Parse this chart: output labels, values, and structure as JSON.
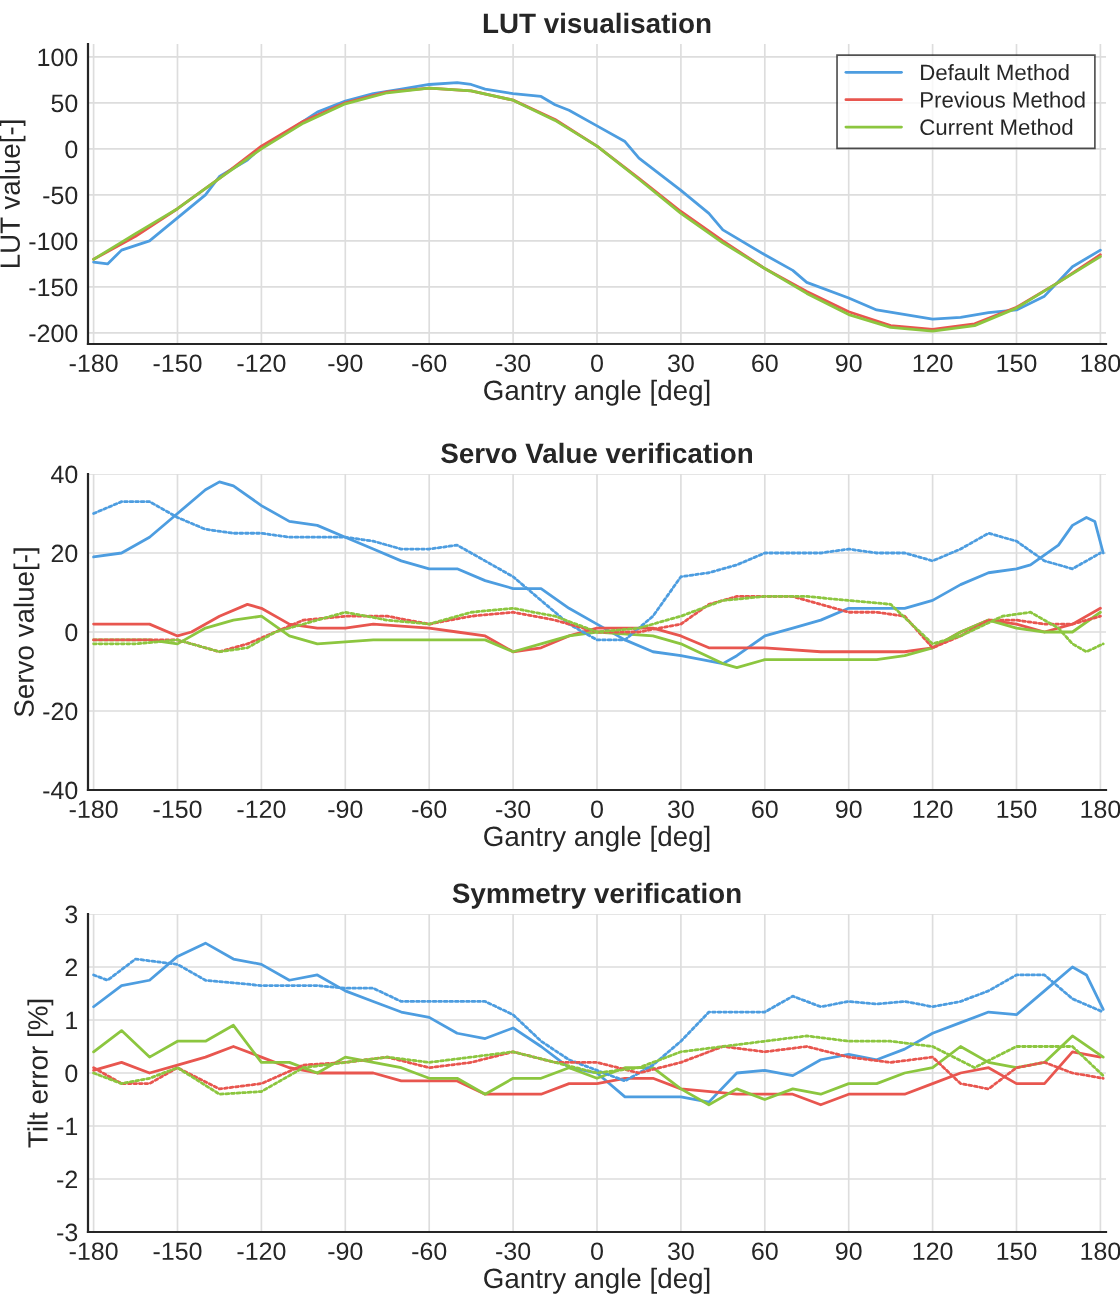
{
  "chart_data": [
    {
      "type": "line",
      "title": "LUT visualisation",
      "xlabel": "Gantry angle [deg]",
      "ylabel": "LUT value[-]",
      "xlim": [
        -182,
        182
      ],
      "xticks": [
        -180,
        -150,
        -120,
        -90,
        -60,
        -30,
        0,
        30,
        60,
        90,
        120,
        150,
        180
      ],
      "ylim": [
        -212,
        114
      ],
      "yticks": [
        -200,
        -150,
        -100,
        -50,
        0,
        50,
        100
      ],
      "grid": true,
      "legend": "top right",
      "series": [
        {
          "name": "Default Method",
          "color": "#4d9de0",
          "line_style": "solid",
          "x": [
            -180,
            -175,
            -170,
            -160,
            -150,
            -140,
            -135,
            -125,
            -120,
            -110,
            -100,
            -90,
            -80,
            -70,
            -60,
            -50,
            -45,
            -40,
            -30,
            -20,
            -15,
            -10,
            0,
            10,
            15,
            30,
            40,
            45,
            60,
            70,
            75,
            90,
            100,
            120,
            130,
            140,
            150,
            160,
            170,
            180
          ],
          "values": [
            -123,
            -125,
            -110,
            -100,
            -75,
            -50,
            -30,
            -12,
            2,
            20,
            40,
            52,
            60,
            65,
            70,
            72,
            70,
            65,
            60,
            57,
            48,
            42,
            25,
            8,
            -10,
            -45,
            -70,
            -88,
            -115,
            -132,
            -145,
            -162,
            -175,
            -185,
            -183,
            -178,
            -175,
            -160,
            -128,
            -110
          ]
        },
        {
          "name": "Previous Method",
          "color": "#e8564f",
          "line_style": "solid",
          "x": [
            -180,
            -165,
            -150,
            -135,
            -120,
            -105,
            -90,
            -75,
            -60,
            -45,
            -30,
            -15,
            0,
            15,
            30,
            45,
            60,
            75,
            90,
            105,
            120,
            135,
            150,
            165,
            180
          ],
          "values": [
            -120,
            -95,
            -65,
            -32,
            3,
            30,
            50,
            62,
            66,
            63,
            53,
            32,
            3,
            -32,
            -68,
            -100,
            -130,
            -155,
            -177,
            -192,
            -196,
            -190,
            -172,
            -145,
            -115
          ]
        },
        {
          "name": "Current Method",
          "color": "#8cc63f",
          "line_style": "solid",
          "x": [
            -180,
            -165,
            -150,
            -135,
            -120,
            -105,
            -90,
            -75,
            -60,
            -45,
            -30,
            -15,
            0,
            15,
            30,
            45,
            60,
            75,
            90,
            105,
            120,
            135,
            150,
            165,
            180
          ],
          "values": [
            -120,
            -92,
            -65,
            -32,
            0,
            28,
            49,
            61,
            66,
            63,
            53,
            31,
            3,
            -33,
            -70,
            -102,
            -130,
            -157,
            -180,
            -194,
            -198,
            -192,
            -173,
            -145,
            -117
          ]
        }
      ]
    },
    {
      "type": "line",
      "title": "Servo Value verification",
      "xlabel": "Gantry angle [deg]",
      "ylabel": "Servo value[-]",
      "xlim": [
        -182,
        182
      ],
      "xticks": [
        -180,
        -150,
        -120,
        -90,
        -60,
        -30,
        0,
        30,
        60,
        90,
        120,
        150,
        180
      ],
      "ylim": [
        -40,
        40
      ],
      "yticks": [
        -40,
        -20,
        0,
        20,
        40
      ],
      "grid": true,
      "series": [
        {
          "color": "#4d9de0",
          "line_style": "solid",
          "x": [
            -180,
            -170,
            -160,
            -150,
            -140,
            -135,
            -130,
            -120,
            -110,
            -100,
            -90,
            -80,
            -70,
            -60,
            -50,
            -40,
            -30,
            -20,
            -10,
            0,
            10,
            20,
            30,
            45,
            50,
            60,
            70,
            80,
            90,
            100,
            110,
            120,
            130,
            140,
            150,
            155,
            165,
            170,
            175,
            178,
            181
          ],
          "values": [
            19,
            20,
            24,
            30,
            36,
            38,
            37,
            32,
            28,
            27,
            24,
            21,
            18,
            16,
            16,
            13,
            11,
            11,
            6,
            2,
            -2,
            -5,
            -6,
            -8,
            -6,
            -1,
            1,
            3,
            6,
            6,
            6,
            8,
            12,
            15,
            16,
            17,
            22,
            27,
            29,
            28,
            20
          ]
        },
        {
          "color": "#4d9de0",
          "line_style": "dotted",
          "x": [
            -180,
            -170,
            -160,
            -150,
            -140,
            -130,
            -120,
            -110,
            -100,
            -90,
            -80,
            -70,
            -60,
            -50,
            -40,
            -30,
            -20,
            -10,
            0,
            10,
            20,
            30,
            40,
            50,
            60,
            70,
            80,
            90,
            100,
            110,
            120,
            130,
            140,
            150,
            160,
            170,
            180
          ],
          "values": [
            30,
            33,
            33,
            29,
            26,
            25,
            25,
            24,
            24,
            24,
            23,
            21,
            21,
            22,
            18,
            14,
            8,
            2,
            -2,
            -2,
            4,
            14,
            15,
            17,
            20,
            20,
            20,
            21,
            20,
            20,
            18,
            21,
            25,
            23,
            18,
            16,
            20
          ]
        },
        {
          "color": "#e8564f",
          "line_style": "solid",
          "x": [
            -180,
            -160,
            -150,
            -145,
            -135,
            -125,
            -120,
            -110,
            -100,
            -90,
            -80,
            -60,
            -50,
            -40,
            -30,
            -20,
            -10,
            0,
            20,
            30,
            40,
            60,
            80,
            110,
            120,
            130,
            140,
            150,
            160,
            170,
            180
          ],
          "values": [
            2,
            2,
            -1,
            0,
            4,
            7,
            6,
            2,
            1,
            1,
            2,
            1,
            0,
            -1,
            -5,
            -4,
            -1,
            1,
            1,
            -1,
            -4,
            -4,
            -5,
            -5,
            -4,
            0,
            3,
            2,
            0,
            2,
            6
          ]
        },
        {
          "color": "#e8564f",
          "line_style": "dotted",
          "x": [
            -180,
            -165,
            -150,
            -135,
            -125,
            -115,
            -105,
            -90,
            -75,
            -60,
            -45,
            -30,
            -15,
            0,
            15,
            30,
            40,
            50,
            60,
            70,
            80,
            90,
            100,
            110,
            120,
            130,
            140,
            150,
            160,
            170,
            180
          ],
          "values": [
            -2,
            -2,
            -2,
            -5,
            -3,
            0,
            3,
            4,
            4,
            2,
            4,
            5,
            3,
            0,
            0,
            2,
            7,
            9,
            9,
            9,
            7,
            5,
            5,
            4,
            -4,
            -1,
            3,
            3,
            2,
            2,
            4
          ]
        },
        {
          "color": "#8cc63f",
          "line_style": "solid",
          "x": [
            -180,
            -160,
            -150,
            -140,
            -130,
            -120,
            -110,
            -100,
            -80,
            -40,
            -30,
            -20,
            -10,
            0,
            20,
            30,
            45,
            50,
            60,
            80,
            100,
            110,
            120,
            130,
            140,
            150,
            160,
            170,
            180
          ],
          "values": [
            -2,
            -2,
            -3,
            1,
            3,
            4,
            -1,
            -3,
            -2,
            -2,
            -5,
            -3,
            -1,
            0,
            -1,
            -3,
            -8,
            -9,
            -7,
            -7,
            -7,
            -6,
            -4,
            0,
            3,
            1,
            0,
            0,
            5
          ]
        },
        {
          "color": "#8cc63f",
          "line_style": "dotted",
          "x": [
            -180,
            -165,
            -150,
            -135,
            -125,
            -115,
            -100,
            -90,
            -75,
            -60,
            -45,
            -30,
            -15,
            0,
            15,
            30,
            45,
            60,
            75,
            90,
            105,
            120,
            130,
            145,
            155,
            165,
            170,
            175,
            181
          ],
          "values": [
            -3,
            -3,
            -2,
            -5,
            -4,
            0,
            3,
            5,
            3,
            2,
            5,
            6,
            4,
            0,
            1,
            4,
            8,
            9,
            9,
            8,
            7,
            -3,
            -1,
            4,
            5,
            1,
            -3,
            -5,
            -3
          ]
        }
      ]
    },
    {
      "type": "line",
      "title": "Symmetry verification",
      "xlabel": "Gantry angle [deg]",
      "ylabel": "Tilt error [%]",
      "xlim": [
        -182,
        182
      ],
      "xticks": [
        -180,
        -150,
        -120,
        -90,
        -60,
        -30,
        0,
        30,
        60,
        90,
        120,
        150,
        180
      ],
      "ylim": [
        -3,
        3
      ],
      "yticks": [
        -3,
        -2,
        -1,
        0,
        1,
        2,
        3
      ],
      "grid": true,
      "series": [
        {
          "color": "#4d9de0",
          "line_style": "solid",
          "x": [
            -180,
            -170,
            -160,
            -150,
            -140,
            -130,
            -120,
            -110,
            -100,
            -90,
            -80,
            -70,
            -60,
            -50,
            -40,
            -30,
            -20,
            -10,
            0,
            10,
            20,
            30,
            40,
            50,
            60,
            70,
            80,
            90,
            100,
            110,
            120,
            130,
            140,
            150,
            160,
            170,
            175,
            181
          ],
          "values": [
            1.25,
            1.65,
            1.75,
            2.2,
            2.45,
            2.15,
            2.05,
            1.75,
            1.85,
            1.55,
            1.35,
            1.15,
            1.05,
            0.75,
            0.65,
            0.85,
            0.5,
            0.1,
            0,
            -0.45,
            -0.45,
            -0.45,
            -0.55,
            0,
            0.05,
            -0.05,
            0.25,
            0.35,
            0.25,
            0.45,
            0.75,
            0.95,
            1.15,
            1.1,
            1.55,
            2.0,
            1.85,
            1.2
          ]
        },
        {
          "color": "#4d9de0",
          "line_style": "dotted",
          "x": [
            -180,
            -175,
            -165,
            -150,
            -140,
            -120,
            -100,
            -90,
            -80,
            -70,
            -60,
            -40,
            -30,
            -20,
            -10,
            0,
            10,
            20,
            30,
            40,
            60,
            70,
            80,
            90,
            100,
            110,
            120,
            130,
            140,
            150,
            160,
            170,
            181
          ],
          "values": [
            1.85,
            1.75,
            2.15,
            2.05,
            1.75,
            1.65,
            1.65,
            1.6,
            1.6,
            1.35,
            1.35,
            1.35,
            1.1,
            0.6,
            0.25,
            0.05,
            -0.15,
            0.15,
            0.6,
            1.15,
            1.15,
            1.45,
            1.25,
            1.35,
            1.3,
            1.35,
            1.25,
            1.35,
            1.55,
            1.85,
            1.85,
            1.4,
            1.15
          ]
        },
        {
          "color": "#e8564f",
          "line_style": "solid",
          "x": [
            -180,
            -170,
            -160,
            -150,
            -140,
            -130,
            -120,
            -110,
            -100,
            -80,
            -70,
            -50,
            -40,
            -20,
            -10,
            0,
            10,
            20,
            30,
            50,
            70,
            80,
            90,
            110,
            120,
            130,
            140,
            150,
            160,
            170,
            180
          ],
          "values": [
            0.05,
            0.2,
            0,
            0.15,
            0.3,
            0.5,
            0.3,
            0.1,
            0,
            0,
            -0.15,
            -0.15,
            -0.4,
            -0.4,
            -0.2,
            -0.2,
            -0.1,
            -0.1,
            -0.3,
            -0.4,
            -0.4,
            -0.6,
            -0.4,
            -0.4,
            -0.2,
            0,
            0.1,
            -0.2,
            -0.2,
            0.4,
            0.3
          ]
        },
        {
          "color": "#e8564f",
          "line_style": "dotted",
          "x": [
            -180,
            -170,
            -160,
            -150,
            -135,
            -120,
            -105,
            -90,
            -75,
            -60,
            -45,
            -30,
            -15,
            0,
            15,
            30,
            45,
            60,
            75,
            90,
            105,
            120,
            130,
            140,
            150,
            160,
            170,
            181
          ],
          "values": [
            0.1,
            -0.2,
            -0.2,
            0.1,
            -0.3,
            -0.2,
            0.15,
            0.2,
            0.3,
            0.1,
            0.2,
            0.4,
            0.2,
            0.2,
            0,
            0.2,
            0.5,
            0.4,
            0.5,
            0.3,
            0.2,
            0.3,
            -0.2,
            -0.3,
            0.1,
            0.2,
            0,
            -0.1
          ]
        },
        {
          "color": "#8cc63f",
          "line_style": "solid",
          "x": [
            -180,
            -170,
            -160,
            -150,
            -140,
            -130,
            -120,
            -110,
            -100,
            -90,
            -80,
            -70,
            -60,
            -50,
            -40,
            -30,
            -20,
            -10,
            0,
            10,
            20,
            30,
            40,
            50,
            60,
            70,
            80,
            90,
            100,
            110,
            120,
            130,
            140,
            150,
            160,
            170,
            181
          ],
          "values": [
            0.4,
            0.8,
            0.3,
            0.6,
            0.6,
            0.9,
            0.2,
            0.2,
            0,
            0.3,
            0.2,
            0.1,
            -0.1,
            -0.1,
            -0.4,
            -0.1,
            -0.1,
            0.1,
            -0.1,
            0.1,
            0.1,
            -0.3,
            -0.6,
            -0.3,
            -0.5,
            -0.3,
            -0.4,
            -0.2,
            -0.2,
            0,
            0.1,
            0.5,
            0.2,
            0.1,
            0.2,
            0.7,
            0.3
          ]
        },
        {
          "color": "#8cc63f",
          "line_style": "dotted",
          "x": [
            -180,
            -170,
            -160,
            -150,
            -135,
            -120,
            -105,
            -90,
            -75,
            -60,
            -45,
            -30,
            -15,
            0,
            15,
            30,
            45,
            60,
            75,
            90,
            105,
            120,
            135,
            150,
            160,
            170,
            181
          ],
          "values": [
            0,
            -0.2,
            -0.1,
            0.1,
            -0.4,
            -0.35,
            0.1,
            0.2,
            0.3,
            0.2,
            0.3,
            0.4,
            0.2,
            0,
            0.1,
            0.4,
            0.5,
            0.6,
            0.7,
            0.6,
            0.6,
            0.5,
            0.1,
            0.5,
            0.5,
            0.5,
            -0.05
          ]
        }
      ]
    }
  ]
}
